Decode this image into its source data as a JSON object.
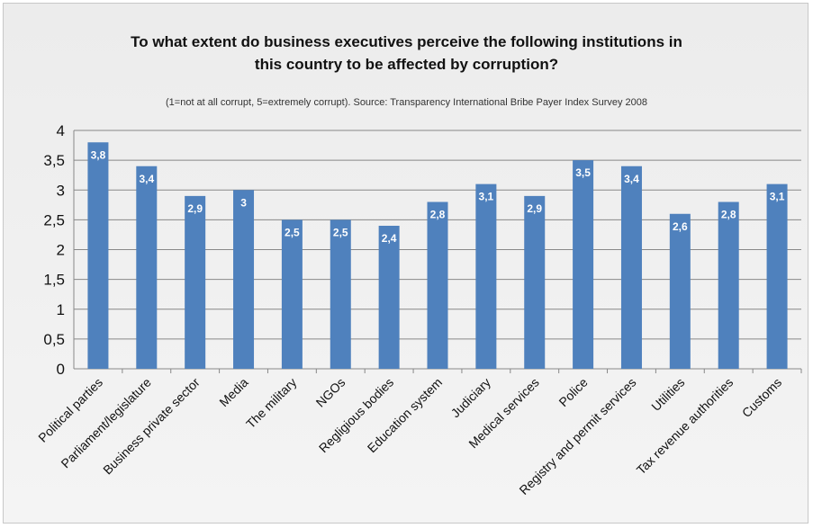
{
  "chart_data": {
    "type": "bar",
    "title_lines": [
      "To what extent do business executives perceive the following institutions in",
      "this country to be affected by corruption?"
    ],
    "subtitle": "(1=not at all corrupt, 5=extremely corrupt). Source: Transparency International Bribe Payer Index Survey 2008",
    "categories": [
      "Political parties",
      "Parliament/legislature",
      "Business private sector",
      "Media",
      "The military",
      "NGOs",
      "Regligious bodies",
      "Education system",
      "Judiciary",
      "Medical services",
      "Police",
      "Registry and permit services",
      "Utilities",
      "Tax revenue authorities",
      "Customs"
    ],
    "values": [
      3.8,
      3.4,
      2.9,
      3,
      2.5,
      2.5,
      2.4,
      2.8,
      3.1,
      2.9,
      3.5,
      3.4,
      2.6,
      2.8,
      3.1
    ],
    "value_labels": [
      "3,8",
      "3,4",
      "2,9",
      "3",
      "2,5",
      "2,5",
      "2,4",
      "2,8",
      "3,1",
      "2,9",
      "3,5",
      "3,4",
      "2,6",
      "2,8",
      "3,1"
    ],
    "ylim": [
      0,
      4
    ],
    "yticks": [
      0,
      0.5,
      1,
      1.5,
      2,
      2.5,
      3,
      3.5,
      4
    ],
    "ytick_labels": [
      "0",
      "0,5",
      "1",
      "1,5",
      "2",
      "2,5",
      "3",
      "3,5",
      "4"
    ],
    "grid": true,
    "legend": "none",
    "colors": {
      "bar": "#4f81bd",
      "grid": "#888888",
      "axis": "#888888"
    }
  }
}
